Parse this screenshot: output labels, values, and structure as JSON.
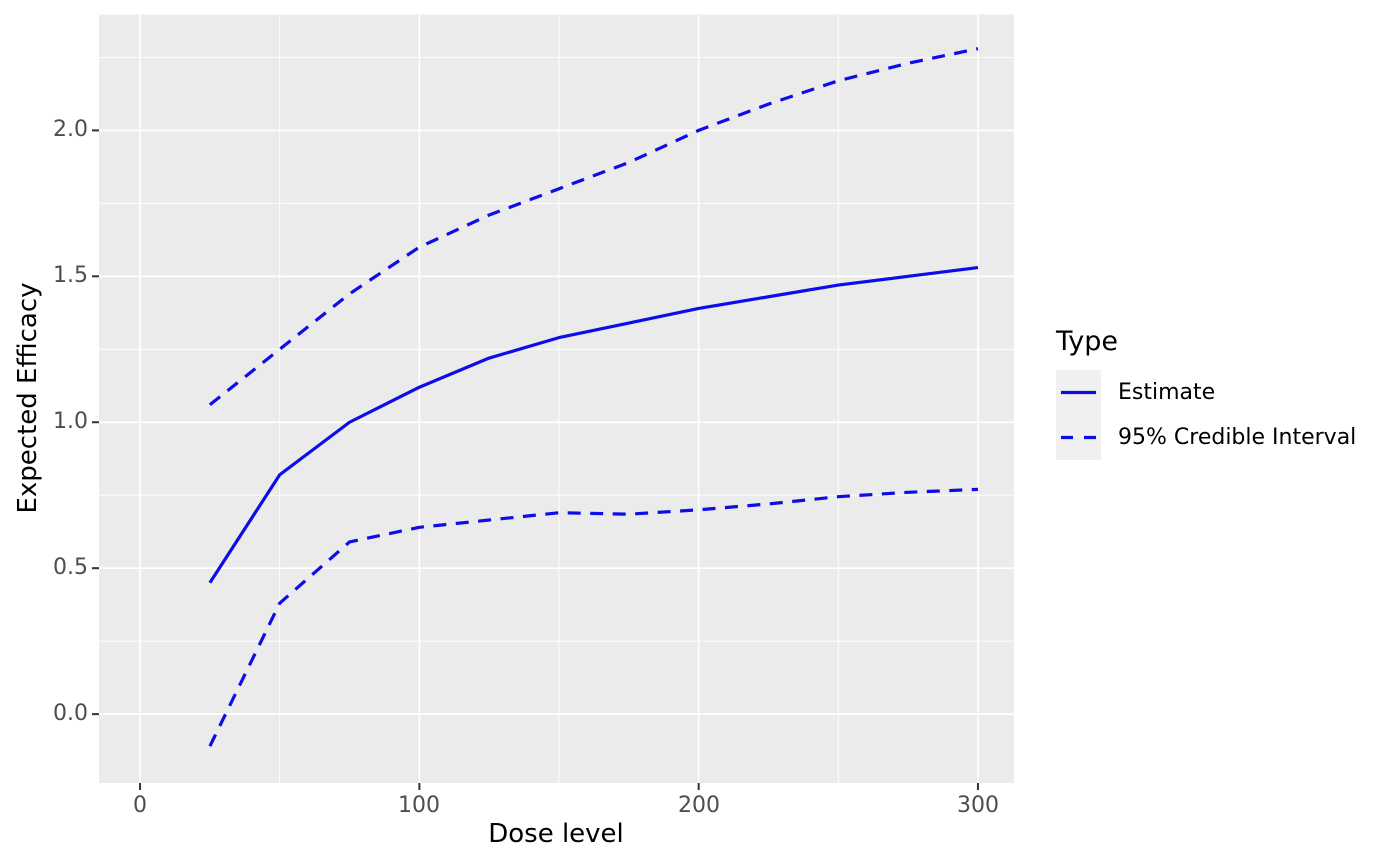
{
  "chart_data": {
    "type": "line",
    "title": "",
    "xlabel": "Dose level",
    "ylabel": "Expected Efficacy",
    "x": [
      25,
      50,
      75,
      100,
      125,
      150,
      175,
      200,
      225,
      250,
      275,
      300
    ],
    "series": [
      {
        "name": "Estimate",
        "style": "solid",
        "values": [
          0.45,
          0.82,
          1.0,
          1.12,
          1.22,
          1.29,
          1.34,
          1.39,
          1.43,
          1.47,
          1.5,
          1.53
        ]
      },
      {
        "name": "95% Credible Interval (upper bound)",
        "style": "dashed",
        "values": [
          1.06,
          1.25,
          1.44,
          1.6,
          1.71,
          1.8,
          1.89,
          2.0,
          2.09,
          2.17,
          2.23,
          2.28
        ]
      },
      {
        "name": "95% Credible Interval (lower bound)",
        "style": "dashed",
        "values": [
          -0.11,
          0.38,
          0.59,
          0.64,
          0.665,
          0.69,
          0.685,
          0.7,
          0.72,
          0.745,
          0.76,
          0.77
        ]
      }
    ],
    "x_ticks": {
      "labels": [
        "0",
        "100",
        "200",
        "300"
      ],
      "values": [
        0,
        100,
        200,
        300
      ],
      "minor": [
        50,
        150,
        250
      ]
    },
    "y_ticks": {
      "labels": [
        "0.0",
        "0.5",
        "1.0",
        "1.5",
        "2.0"
      ],
      "values": [
        0,
        0.5,
        1.0,
        1.5,
        2.0
      ],
      "minor": [
        0.25,
        0.75,
        1.25,
        1.75,
        2.25
      ]
    },
    "xlim": [
      -14.7,
      312.9
    ],
    "ylim": [
      -0.236,
      2.397
    ],
    "grid": true,
    "legend": {
      "title": "Type",
      "position": "right",
      "entries": [
        {
          "label": "Estimate",
          "style": "solid"
        },
        {
          "label": "95% Credible Interval",
          "style": "dashed"
        }
      ]
    },
    "colors": {
      "line": "#0d0de8",
      "panel_background": "#ebebeb",
      "gridline": "#ffffff",
      "tick_label": "#4d4d4d",
      "tick_mark": "#333333",
      "axis_title": "#000000",
      "legend_key_background": "#f0f0f0",
      "figure_background": "#ffffff"
    }
  }
}
